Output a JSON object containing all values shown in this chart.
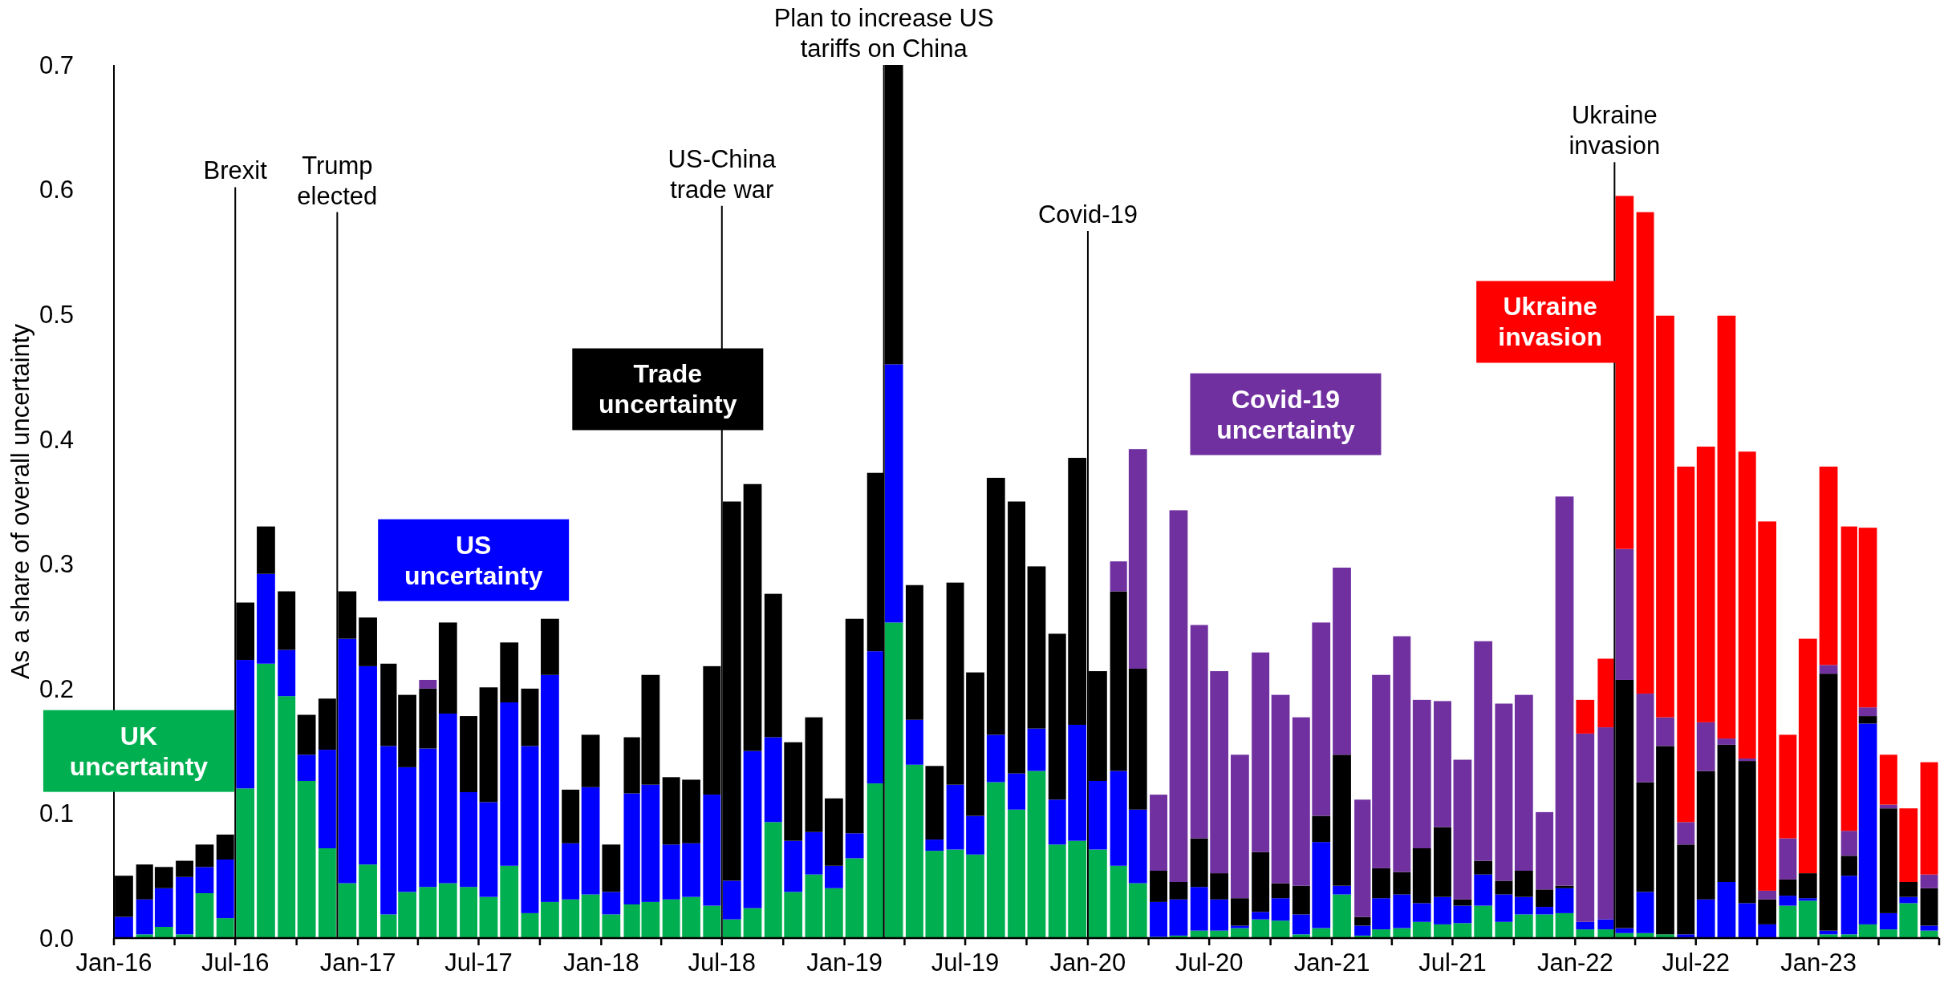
{
  "chart_data": {
    "type": "bar",
    "stacked": true,
    "ylabel": "As a share of overall uncertainty",
    "x": [
      "2016-01-16",
      "2016-02-16",
      "2016-03-16",
      "2016-04-16",
      "2016-05-16",
      "2016-06-16",
      "2016-07-16",
      "2016-08-16",
      "2016-09-16",
      "2016-10-16",
      "2016-11-16",
      "2016-12-16",
      "2017-01-16",
      "2017-02-16",
      "2017-03-16",
      "2017-04-16",
      "2017-05-16",
      "2017-06-16",
      "2017-07-16",
      "2017-08-16",
      "2017-09-16",
      "2017-10-16",
      "2017-11-16",
      "2017-12-16",
      "2018-01-16",
      "2018-02-16",
      "2018-03-16",
      "2018-04-16",
      "2018-05-16",
      "2018-06-16",
      "2018-07-16",
      "2018-08-16",
      "2018-09-16",
      "2018-10-16",
      "2018-11-16",
      "2018-12-16",
      "2019-01-16",
      "2019-02-16",
      "2019-03-16",
      "2019-04-16",
      "2019-05-16",
      "2019-06-16",
      "2019-07-16",
      "2019-08-16",
      "2019-09-16",
      "2019-10-16",
      "2019-11-16",
      "2019-12-16",
      "2020-01-16",
      "2020-02-16",
      "2020-03-16",
      "2020-04-16",
      "2020-05-16",
      "2020-06-16",
      "2020-07-16",
      "2020-08-16",
      "2020-09-16",
      "2020-10-16",
      "2020-11-16",
      "2020-12-16",
      "2021-01-16",
      "2021-02-16",
      "2021-03-16",
      "2021-04-16",
      "2021-05-16",
      "2021-06-16",
      "2021-07-16",
      "2021-08-16",
      "2021-09-16",
      "2021-10-16",
      "2021-11-16",
      "2021-12-16",
      "2022-01-16",
      "2022-02-16",
      "2022-03-16",
      "2022-04-16",
      "2022-05-16",
      "2022-06-16",
      "2022-07-16",
      "2022-08-16",
      "2022-09-16",
      "2022-10-16",
      "2022-11-16",
      "2022-12-16",
      "2023-01-16",
      "2023-02-16",
      "2023-03-16",
      "2023-04-16",
      "2023-05-16",
      "2023-06-16"
    ],
    "series": [
      {
        "name": "UK uncertainty",
        "color": "#00b050",
        "values": [
          0,
          0.003,
          0.009,
          0.003,
          0.036,
          0.016,
          0.12,
          0.22,
          0.194,
          0.126,
          0.072,
          0.044,
          0.059,
          0.019,
          0.037,
          0.041,
          0.044,
          0.041,
          0.033,
          0.058,
          0.02,
          0.029,
          0.031,
          0.035,
          0.019,
          0.027,
          0.029,
          0.031,
          0.033,
          0.026,
          0.015,
          0.024,
          0.093,
          0.037,
          0.051,
          0.04,
          0.064,
          0.124,
          0.253,
          0.139,
          0.07,
          0.071,
          0.067,
          0.125,
          0.103,
          0.134,
          0.075,
          0.078,
          0.071,
          0.058,
          0.044,
          0.001,
          0.002,
          0.006,
          0.006,
          0.008,
          0.015,
          0.014,
          0.003,
          0.008,
          0.035,
          0.002,
          0.007,
          0.008,
          0.013,
          0.011,
          0.012,
          0.026,
          0.013,
          0.019,
          0.019,
          0.02,
          0.007,
          0.007,
          0.004,
          0.004,
          0.003,
          0,
          0,
          0,
          0,
          0,
          0.026,
          0.03,
          0.003,
          0.003,
          0.011,
          0.007,
          0.028,
          0.006
        ]
      },
      {
        "name": "US uncertainty",
        "color": "#0000ff",
        "values": [
          0.017,
          0.028,
          0.031,
          0.046,
          0.021,
          0.047,
          0.103,
          0.072,
          0.037,
          0.021,
          0.079,
          0.196,
          0.159,
          0.135,
          0.1,
          0.111,
          0.136,
          0.076,
          0.076,
          0.131,
          0.134,
          0.182,
          0.045,
          0.086,
          0.018,
          0.089,
          0.094,
          0.044,
          0.043,
          0.089,
          0.031,
          0.126,
          0.068,
          0.041,
          0.034,
          0.018,
          0.02,
          0.106,
          0.207,
          0.036,
          0.009,
          0.052,
          0.031,
          0.038,
          0.029,
          0.034,
          0.036,
          0.093,
          0.055,
          0.076,
          0.059,
          0.028,
          0.029,
          0.035,
          0.025,
          0.002,
          0.006,
          0.018,
          0.016,
          0.069,
          0.007,
          0.008,
          0.025,
          0.027,
          0.015,
          0.022,
          0.014,
          0.025,
          0.022,
          0.014,
          0.006,
          0.02,
          0.006,
          0.008,
          0.004,
          0.033,
          0,
          0.003,
          0.031,
          0.045,
          0.028,
          0.011,
          0.008,
          0.002,
          0.003,
          0.047,
          0.161,
          0.013,
          0.005,
          0.004
        ]
      },
      {
        "name": "Trade uncertainty",
        "color": "#000000",
        "values": [
          0.033,
          0.028,
          0.017,
          0.013,
          0.018,
          0.02,
          0.046,
          0.038,
          0.047,
          0.032,
          0.041,
          0.038,
          0.039,
          0.066,
          0.058,
          0.048,
          0.073,
          0.061,
          0.092,
          0.048,
          0.046,
          0.045,
          0.043,
          0.042,
          0.038,
          0.045,
          0.088,
          0.054,
          0.051,
          0.103,
          0.304,
          0.214,
          0.115,
          0.079,
          0.092,
          0.054,
          0.172,
          0.143,
          0.24,
          0.108,
          0.059,
          0.162,
          0.115,
          0.206,
          0.218,
          0.13,
          0.133,
          0.214,
          0.088,
          0.144,
          0.113,
          0.025,
          0.014,
          0.039,
          0.021,
          0.022,
          0.048,
          0.012,
          0.023,
          0.021,
          0.105,
          0.007,
          0.024,
          0.018,
          0.044,
          0.056,
          0.005,
          0.011,
          0.011,
          0.021,
          0.014,
          0.002,
          0,
          0,
          0.199,
          0.088,
          0.151,
          0.072,
          0.103,
          0.11,
          0.114,
          0.02,
          0.013,
          0.02,
          0.206,
          0.016,
          0.006,
          0.084,
          0.012,
          0.03
        ]
      },
      {
        "name": "Covid-19 uncertainty",
        "color": "#7030a0",
        "values": [
          0,
          0,
          0,
          0,
          0,
          0,
          0,
          0,
          0,
          0,
          0,
          0,
          0,
          0,
          0,
          0.007,
          0,
          0,
          0,
          0,
          0,
          0,
          0,
          0,
          0,
          0,
          0,
          0,
          0,
          0,
          0,
          0,
          0,
          0,
          0,
          0,
          0,
          0,
          0,
          0,
          0,
          0,
          0,
          0,
          0,
          0,
          0,
          0,
          0,
          0.024,
          0.176,
          0.061,
          0.298,
          0.171,
          0.162,
          0.115,
          0.16,
          0.151,
          0.135,
          0.155,
          0.15,
          0.094,
          0.155,
          0.189,
          0.119,
          0.101,
          0.112,
          0.176,
          0.142,
          0.141,
          0.062,
          0.312,
          0.151,
          0.154,
          0.105,
          0.071,
          0.023,
          0.018,
          0.039,
          0.005,
          0.002,
          0.007,
          0.033,
          0,
          0.007,
          0.02,
          0.007,
          0.003,
          0,
          0.011
        ]
      },
      {
        "name": "Ukraine invasion",
        "color": "#ff0000",
        "values": [
          0,
          0,
          0,
          0,
          0,
          0,
          0,
          0,
          0,
          0,
          0,
          0,
          0,
          0,
          0,
          0,
          0,
          0,
          0,
          0,
          0,
          0,
          0,
          0,
          0,
          0,
          0,
          0,
          0,
          0,
          0,
          0,
          0,
          0,
          0,
          0,
          0,
          0,
          0,
          0,
          0,
          0,
          0,
          0,
          0,
          0,
          0,
          0,
          0,
          0,
          0,
          0,
          0,
          0,
          0,
          0,
          0,
          0,
          0,
          0,
          0,
          0,
          0,
          0,
          0,
          0,
          0,
          0,
          0,
          0,
          0,
          0,
          0.027,
          0.055,
          0.283,
          0.386,
          0.322,
          0.285,
          0.221,
          0.339,
          0.246,
          0.296,
          0.083,
          0.188,
          0.159,
          0.244,
          0.144,
          0.04,
          0.059,
          0.09
        ]
      }
    ],
    "xlim": [
      "2016-01",
      "2023-07"
    ],
    "xticks": [
      {
        "value": "2016-01",
        "label": "Jan-16"
      },
      {
        "value": "2016-04",
        "label": null
      },
      {
        "value": "2016-07",
        "label": "Jul-16"
      },
      {
        "value": "2016-10",
        "label": null
      },
      {
        "value": "2017-01",
        "label": "Jan-17"
      },
      {
        "value": "2017-04",
        "label": null
      },
      {
        "value": "2017-07",
        "label": "Jul-17"
      },
      {
        "value": "2017-10",
        "label": null
      },
      {
        "value": "2018-01",
        "label": "Jan-18"
      },
      {
        "value": "2018-04",
        "label": null
      },
      {
        "value": "2018-07",
        "label": "Jul-18"
      },
      {
        "value": "2018-10",
        "label": null
      },
      {
        "value": "2019-01",
        "label": "Jan-19"
      },
      {
        "value": "2019-04",
        "label": null
      },
      {
        "value": "2019-07",
        "label": "Jul-19"
      },
      {
        "value": "2019-10",
        "label": null
      },
      {
        "value": "2020-01",
        "label": "Jan-20"
      },
      {
        "value": "2020-04",
        "label": null
      },
      {
        "value": "2020-07",
        "label": "Jul-20"
      },
      {
        "value": "2020-10",
        "label": null
      },
      {
        "value": "2021-01",
        "label": "Jan-21"
      },
      {
        "value": "2021-04",
        "label": null
      },
      {
        "value": "2021-07",
        "label": "Jul-21"
      },
      {
        "value": "2021-10",
        "label": null
      },
      {
        "value": "2022-01",
        "label": "Jan-22"
      },
      {
        "value": "2022-04",
        "label": null
      },
      {
        "value": "2022-07",
        "label": "Jul-22"
      },
      {
        "value": "2022-10",
        "label": null
      },
      {
        "value": "2023-01",
        "label": "Jan-23"
      },
      {
        "value": "2023-04",
        "label": null
      },
      {
        "value": "2023-07",
        "label": null
      }
    ],
    "ylim": [
      0,
      0.7
    ],
    "yticks": [
      {
        "value": 0,
        "label": "0.0"
      },
      0.1,
      0.2,
      0.3,
      0.4,
      0.5,
      0.6,
      0.7
    ],
    "grid": false,
    "ref_lines": [
      {
        "axis": "x",
        "value": "2016-07",
        "label": "Brexit",
        "color": "#000000"
      },
      {
        "axis": "x",
        "value": "2016-12",
        "label": "Trump elected",
        "color": "#000000"
      },
      {
        "axis": "x",
        "value": "2018-07",
        "label": "US-China trade war",
        "color": "#000000"
      },
      {
        "axis": "x",
        "value": "2019-03",
        "label": "Plan to increase US tariffs on China",
        "color": "#000000"
      },
      {
        "axis": "x",
        "value": "2020-01",
        "label": "Covid-19",
        "color": "#000000"
      },
      {
        "axis": "x",
        "value": "2022-03",
        "label": "Ukraine invasion",
        "color": "#000000"
      }
    ]
  }
}
